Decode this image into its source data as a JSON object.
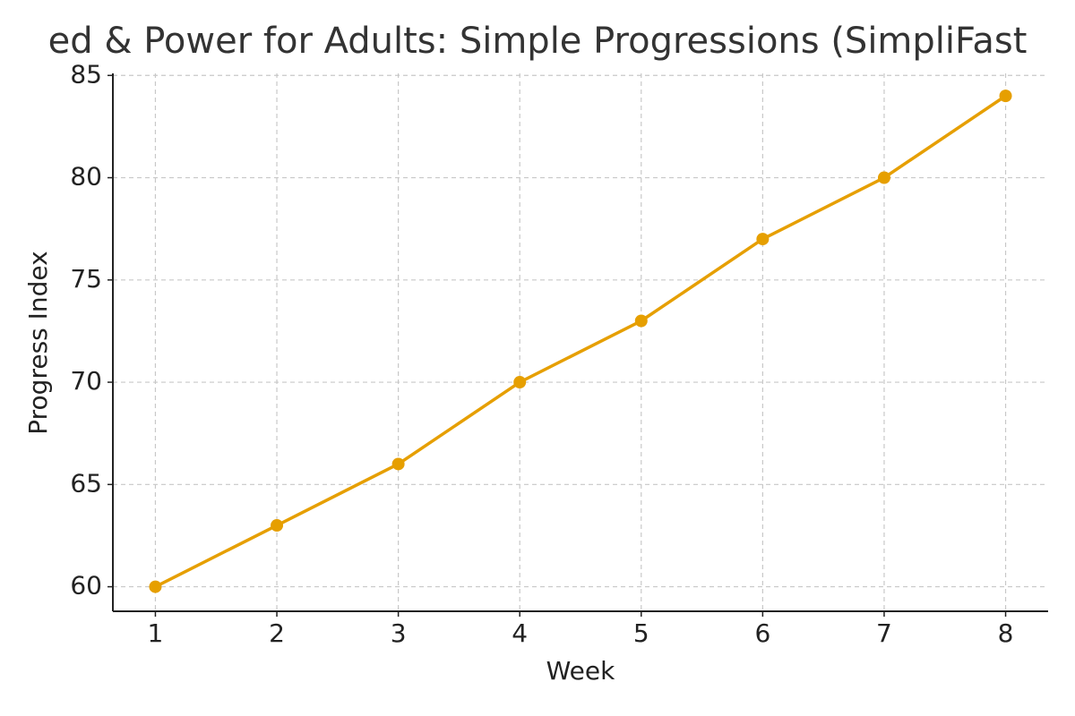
{
  "chart_data": {
    "type": "line",
    "title": "ed & Power for Adults: Simple Progressions (SimpliFast",
    "xlabel": "Week",
    "ylabel": "Progress Index",
    "x": [
      1,
      2,
      3,
      4,
      5,
      6,
      7,
      8
    ],
    "series": [
      {
        "name": "Progress Index",
        "color": "#e69f00",
        "values": [
          60,
          63,
          66,
          70,
          73,
          77,
          80,
          84
        ]
      }
    ],
    "xlim": [
      0.65,
      8.35
    ],
    "xticks": [
      1,
      2,
      3,
      4,
      5,
      6,
      7,
      8
    ],
    "ylim": [
      58.8,
      85.1
    ],
    "yticks": [
      60,
      65,
      70,
      75,
      80,
      85
    ],
    "grid": true
  }
}
